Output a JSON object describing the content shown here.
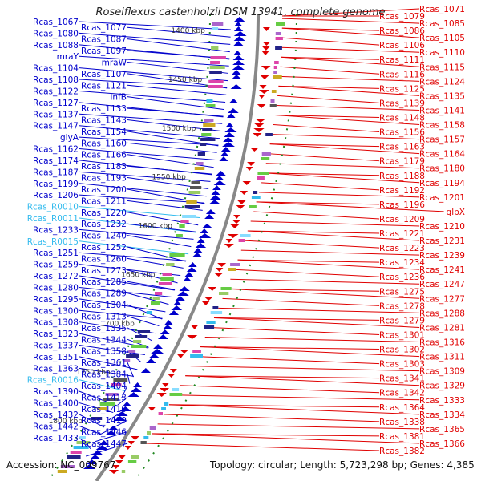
{
  "title": "Roseiflexus castenholzii DSM 13941, complete genome",
  "footer": {
    "accession_label": "Accession:",
    "accession": "NC_009767",
    "topology_label": "Topology:",
    "topology": "circular",
    "length_label": "Length:",
    "length": "5,723,298 bp",
    "genes_label": "Genes:",
    "genes": "4,385"
  },
  "colors": {
    "forward": "#0000cc",
    "reverse": "#e00000",
    "rna": "#33bbee",
    "backbone": "#888888",
    "tick": "#228822"
  },
  "scale_ticks": [
    "1400 kbp",
    "1450 kbp",
    "1500 kbp",
    "1550 kbp",
    "1600 kbp",
    "1650 kbp",
    "1700 kbp",
    "1750 kbp",
    "1800 kbp"
  ],
  "left_labels": [
    {
      "text": "Rcas_1067",
      "kind": "gene"
    },
    {
      "text": "Rcas_1077",
      "kind": "gene"
    },
    {
      "text": "Rcas_1080",
      "kind": "gene"
    },
    {
      "text": "Rcas_1087",
      "kind": "gene"
    },
    {
      "text": "Rcas_1088",
      "kind": "gene"
    },
    {
      "text": "Rcas_1097",
      "kind": "gene"
    },
    {
      "text": "mraY",
      "kind": "gene"
    },
    {
      "text": "mraW",
      "kind": "gene"
    },
    {
      "text": "Rcas_1104",
      "kind": "gene"
    },
    {
      "text": "Rcas_1107",
      "kind": "gene"
    },
    {
      "text": "Rcas_1108",
      "kind": "gene"
    },
    {
      "text": "Rcas_1121",
      "kind": "gene"
    },
    {
      "text": "Rcas_1122",
      "kind": "gene"
    },
    {
      "text": "infB",
      "kind": "gene"
    },
    {
      "text": "Rcas_1127",
      "kind": "gene"
    },
    {
      "text": "Rcas_1133",
      "kind": "gene"
    },
    {
      "text": "Rcas_1137",
      "kind": "gene"
    },
    {
      "text": "Rcas_1143",
      "kind": "gene"
    },
    {
      "text": "Rcas_1147",
      "kind": "gene"
    },
    {
      "text": "Rcas_1154",
      "kind": "gene"
    },
    {
      "text": "glyA",
      "kind": "gene"
    },
    {
      "text": "Rcas_1160",
      "kind": "gene"
    },
    {
      "text": "Rcas_1162",
      "kind": "gene"
    },
    {
      "text": "Rcas_1166",
      "kind": "gene"
    },
    {
      "text": "Rcas_1174",
      "kind": "gene"
    },
    {
      "text": "Rcas_1183",
      "kind": "gene"
    },
    {
      "text": "Rcas_1187",
      "kind": "gene"
    },
    {
      "text": "Rcas_1193",
      "kind": "gene"
    },
    {
      "text": "Rcas_1199",
      "kind": "gene"
    },
    {
      "text": "Rcas_1200",
      "kind": "gene"
    },
    {
      "text": "Rcas_1206",
      "kind": "gene"
    },
    {
      "text": "Rcas_1211",
      "kind": "gene"
    },
    {
      "text": "Rcas_R0010",
      "kind": "rna"
    },
    {
      "text": "Rcas_1220",
      "kind": "gene"
    },
    {
      "text": "Rcas_R0011",
      "kind": "rna"
    },
    {
      "text": "Rcas_1232",
      "kind": "gene"
    },
    {
      "text": "Rcas_1233",
      "kind": "gene"
    },
    {
      "text": "Rcas_1240",
      "kind": "gene"
    },
    {
      "text": "Rcas_R0015",
      "kind": "rna"
    },
    {
      "text": "Rcas_1252",
      "kind": "gene"
    },
    {
      "text": "Rcas_1251",
      "kind": "gene"
    },
    {
      "text": "Rcas_1260",
      "kind": "gene"
    },
    {
      "text": "Rcas_1259",
      "kind": "gene"
    },
    {
      "text": "Rcas_1273",
      "kind": "gene"
    },
    {
      "text": "Rcas_1272",
      "kind": "gene"
    },
    {
      "text": "Rcas_1285",
      "kind": "gene"
    },
    {
      "text": "Rcas_1280",
      "kind": "gene"
    },
    {
      "text": "Rcas_1289",
      "kind": "gene"
    },
    {
      "text": "Rcas_1295",
      "kind": "gene"
    },
    {
      "text": "Rcas_1304",
      "kind": "gene"
    },
    {
      "text": "Rcas_1300",
      "kind": "gene"
    },
    {
      "text": "Rcas_1313",
      "kind": "gene"
    },
    {
      "text": "Rcas_1308",
      "kind": "gene"
    },
    {
      "text": "Rcas_1335",
      "kind": "gene"
    },
    {
      "text": "Rcas_1323",
      "kind": "gene"
    },
    {
      "text": "Rcas_1344",
      "kind": "gene"
    },
    {
      "text": "Rcas_1337",
      "kind": "gene"
    },
    {
      "text": "Rcas_1358",
      "kind": "gene"
    },
    {
      "text": "Rcas_1351",
      "kind": "gene"
    },
    {
      "text": "Rcas_1361",
      "kind": "gene"
    },
    {
      "text": "Rcas_1363",
      "kind": "gene"
    },
    {
      "text": "Rcas_1384",
      "kind": "gene"
    },
    {
      "text": "Rcas_R0016",
      "kind": "rna"
    },
    {
      "text": "Rcas_1404",
      "kind": "gene"
    },
    {
      "text": "Rcas_1390",
      "kind": "gene"
    },
    {
      "text": "Rcas_1413",
      "kind": "gene"
    },
    {
      "text": "Rcas_1400",
      "kind": "gene"
    },
    {
      "text": "Rcas_1410",
      "kind": "gene"
    },
    {
      "text": "Rcas_1432",
      "kind": "gene"
    },
    {
      "text": "Rcas_1419",
      "kind": "gene"
    },
    {
      "text": "Rcas_1442",
      "kind": "gene"
    },
    {
      "text": "Rcas_1446",
      "kind": "gene"
    },
    {
      "text": "Rcas_1433",
      "kind": "gene"
    },
    {
      "text": "Rcas_1447",
      "kind": "gene"
    }
  ],
  "right_labels": [
    {
      "text": "Rcas_1071"
    },
    {
      "text": "Rcas_1079"
    },
    {
      "text": "Rcas_1085"
    },
    {
      "text": "Rcas_1086"
    },
    {
      "text": "Rcas_1105"
    },
    {
      "text": "Rcas_1106"
    },
    {
      "text": "Rcas_1110"
    },
    {
      "text": "Rcas_1111"
    },
    {
      "text": "Rcas_1115"
    },
    {
      "text": "Rcas_1116"
    },
    {
      "text": "Rcas_1124"
    },
    {
      "text": "Rcas_1125"
    },
    {
      "text": "Rcas_1135"
    },
    {
      "text": "Rcas_1139"
    },
    {
      "text": "Rcas_1141"
    },
    {
      "text": "Rcas_1148"
    },
    {
      "text": "Rcas_1158"
    },
    {
      "text": "Rcas_1156"
    },
    {
      "text": "Rcas_1157"
    },
    {
      "text": "Rcas_1163"
    },
    {
      "text": "Rcas_1164"
    },
    {
      "text": "Rcas_1179"
    },
    {
      "text": "Rcas_1180"
    },
    {
      "text": "Rcas_1188"
    },
    {
      "text": "Rcas_1194"
    },
    {
      "text": "Rcas_1192"
    },
    {
      "text": "Rcas_1201"
    },
    {
      "text": "Rcas_1196"
    },
    {
      "text": "glpX"
    },
    {
      "text": "Rcas_1209"
    },
    {
      "text": "Rcas_1210"
    },
    {
      "text": "Rcas_1221"
    },
    {
      "text": "Rcas_1231"
    },
    {
      "text": "Rcas_1223"
    },
    {
      "text": "Rcas_1239"
    },
    {
      "text": "Rcas_1234"
    },
    {
      "text": "Rcas_1241"
    },
    {
      "text": "Rcas_1236"
    },
    {
      "text": "Rcas_1247"
    },
    {
      "text": "Rcas_1275"
    },
    {
      "text": "Rcas_1277"
    },
    {
      "text": "Rcas_1278"
    },
    {
      "text": "Rcas_1288"
    },
    {
      "text": "Rcas_1279"
    },
    {
      "text": "Rcas_1281"
    },
    {
      "text": "Rcas_1301"
    },
    {
      "text": "Rcas_1316"
    },
    {
      "text": "Rcas_1302"
    },
    {
      "text": "Rcas_1311"
    },
    {
      "text": "Rcas_1303"
    },
    {
      "text": "Rcas_1309"
    },
    {
      "text": "Rcas_1341"
    },
    {
      "text": "Rcas_1329"
    },
    {
      "text": "Rcas_1342"
    },
    {
      "text": "Rcas_1333"
    },
    {
      "text": "Rcas_1364"
    },
    {
      "text": "Rcas_1334"
    },
    {
      "text": "Rcas_1338"
    },
    {
      "text": "Rcas_1365"
    },
    {
      "text": "Rcas_1381"
    },
    {
      "text": "Rcas_1366"
    },
    {
      "text": "Rcas_1382"
    }
  ]
}
